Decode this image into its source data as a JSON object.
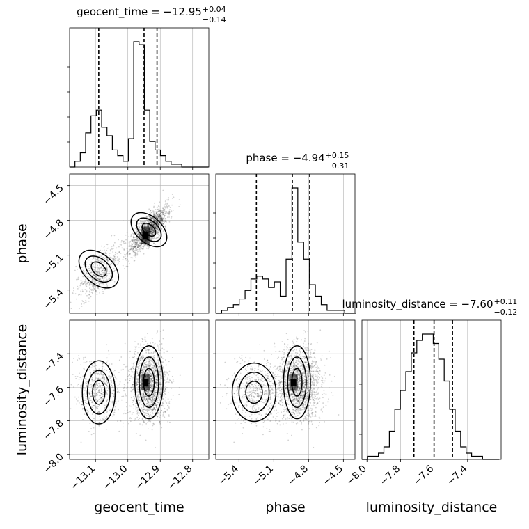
{
  "chart_data": {
    "type": "corner",
    "parameters": [
      "geocent_time",
      "phase",
      "luminosity_distance"
    ],
    "titles": [
      {
        "param": "geocent_time",
        "prefix": "geocent_time = ",
        "median": "−12.95",
        "plus": "+0.04",
        "minus": "−0.14"
      },
      {
        "param": "phase",
        "prefix": "phase = ",
        "median": "−4.94",
        "plus": "+0.15",
        "minus": "−0.31"
      },
      {
        "param": "luminosity_distance",
        "prefix": "luminosity_distance = ",
        "median": "−7.60",
        "plus": "+0.11",
        "minus": "−0.12"
      }
    ],
    "axes": {
      "geocent_time": {
        "range": [
          -13.18,
          -12.75
        ],
        "ticks": [
          -13.1,
          -13.0,
          -12.9,
          -12.8
        ],
        "tick_labels": [
          "−13.1",
          "−13.0",
          "−12.9",
          "−12.8"
        ],
        "label": "geocent_time"
      },
      "phase": {
        "range": [
          -5.6,
          -4.4
        ],
        "ticks": [
          -5.4,
          -5.1,
          -4.8,
          -4.5
        ],
        "tick_labels": [
          "−5.4",
          "−5.1",
          "−4.8",
          "−4.5"
        ],
        "label": "phase"
      },
      "luminosity_distance": {
        "range": [
          -8.03,
          -7.2
        ],
        "ticks": [
          -8.0,
          -7.8,
          -7.6,
          -7.4
        ],
        "tick_labels": [
          "−8.0",
          "−7.8",
          "−7.6",
          "−7.4"
        ],
        "label": "luminosity_distance"
      }
    },
    "histograms": [
      {
        "param": "geocent_time",
        "bin_start": -13.18,
        "bin_width": 0.0165,
        "counts": [
          0,
          2,
          5,
          12,
          18,
          20,
          14,
          11,
          6,
          4,
          2,
          10,
          44,
          43,
          20,
          9,
          6,
          4,
          2,
          1,
          1,
          0,
          0,
          0,
          0,
          0
        ],
        "quantiles": [
          -13.09,
          -12.95,
          -12.91
        ]
      },
      {
        "param": "phase",
        "bin_start": -5.6,
        "bin_width": 0.0505,
        "counts": [
          0,
          1,
          2,
          3,
          5,
          8,
          12,
          13,
          12,
          9,
          11,
          6,
          19,
          44,
          25,
          19,
          10,
          6,
          3,
          1,
          1,
          1,
          0,
          0
        ],
        "quantiles": [
          -5.25,
          -4.94,
          -4.79
        ]
      },
      {
        "param": "luminosity_distance",
        "bin_start": -8.03,
        "bin_width": 0.0327,
        "counts": [
          0,
          1,
          1,
          2,
          4,
          9,
          16,
          22,
          28,
          34,
          38,
          40,
          40,
          37,
          32,
          25,
          16,
          9,
          4,
          2,
          1,
          1,
          0,
          0,
          0
        ],
        "quantiles": [
          -7.72,
          -7.6,
          -7.49
        ]
      }
    ],
    "grid": true
  }
}
